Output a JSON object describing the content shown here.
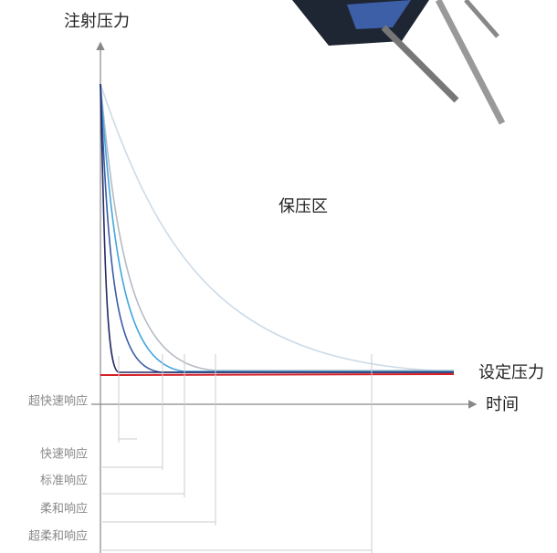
{
  "y_axis_label": "注射压力",
  "x_axis_label": "时间",
  "region_label": "保压区",
  "setpoint_label": "设定压力",
  "responses": [
    "超快速响应",
    "快速响应",
    "标准响应",
    "柔和响应",
    "超柔和响应"
  ]
}
